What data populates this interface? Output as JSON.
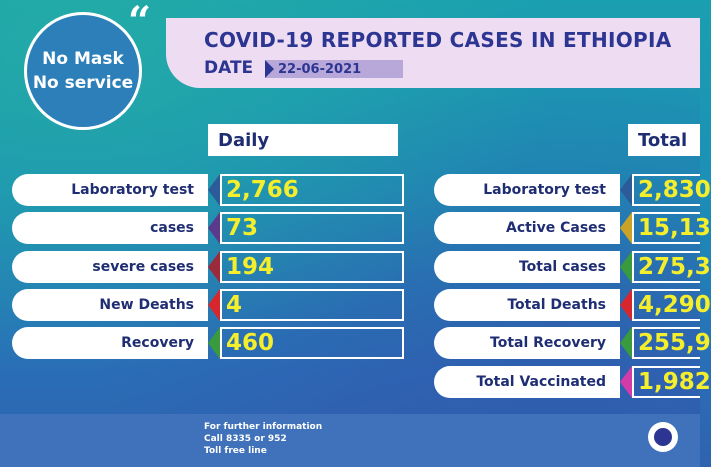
{
  "badge": {
    "line1": "No Mask",
    "line2": "No service"
  },
  "quote_mark": "“",
  "title": "COVID-19 REPORTED CASES IN ETHIOPIA",
  "date": {
    "label": "DATE",
    "value": "22-06-2021"
  },
  "daily": {
    "header": "Daily",
    "rows": [
      {
        "label": "Laboratory test",
        "value": "2,766",
        "arrow_color": "#2b5c99"
      },
      {
        "label": "cases",
        "value": "73",
        "arrow_color": "#5b3a8c"
      },
      {
        "label": "severe cases",
        "value": "194",
        "arrow_color": "#9b2a3a"
      },
      {
        "label": "New Deaths",
        "value": "4",
        "arrow_color": "#d6282c"
      },
      {
        "label": "Recovery",
        "value": "460",
        "arrow_color": "#3a9a3e"
      }
    ]
  },
  "total": {
    "header": "Total",
    "rows": [
      {
        "label": "Laboratory test",
        "value": "2,830",
        "arrow_color": "#2b5c99"
      },
      {
        "label": "Active Cases",
        "value": "15,13",
        "arrow_color": "#c9a227"
      },
      {
        "label": "Total cases",
        "value": "275,3",
        "arrow_color": "#3a9a3e"
      },
      {
        "label": "Total Deaths",
        "value": "4,290",
        "arrow_color": "#d6282c"
      },
      {
        "label": "Total Recovery",
        "value": "255,9",
        "arrow_color": "#3a9a3e"
      },
      {
        "label": "Total Vaccinated",
        "value": "1,982",
        "arrow_color": "#d23ba8"
      }
    ]
  },
  "footer": {
    "line1": "For further information",
    "line2": "Call 8335 or 952",
    "line3": "Toll free line"
  },
  "colors": {
    "value_text": "#f4ee2c",
    "title": "#2d3592",
    "banner": "#eddcf2"
  },
  "icons": {
    "logo": "ministry-logo-icon"
  }
}
